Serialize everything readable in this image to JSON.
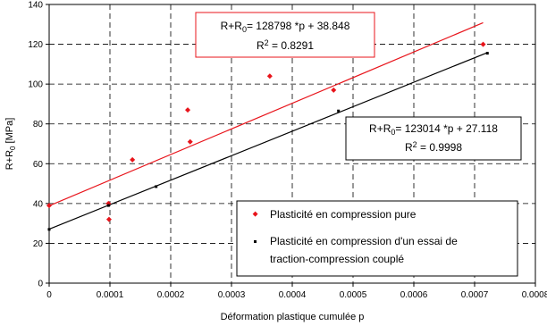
{
  "chart_data": {
    "type": "scatter",
    "xlabel": "Déformation plastique cumulée p",
    "ylabel": "R+R₀ [MPa]",
    "xlim": [
      0,
      0.0008
    ],
    "ylim": [
      0,
      140
    ],
    "x_ticks": [
      0,
      0.0001,
      0.0002,
      0.0003,
      0.0004,
      0.0005,
      0.0006,
      0.0007,
      0.0008
    ],
    "x_tick_labels": [
      "0",
      "0.0001",
      "0.0002",
      "0.0003",
      "0.0004",
      "0.0005",
      "0.0006",
      "0.0007",
      "0.0008"
    ],
    "y_ticks": [
      0,
      20,
      40,
      60,
      80,
      100,
      120,
      140
    ],
    "y_tick_labels": [
      "0",
      "20",
      "40",
      "60",
      "80",
      "100",
      "120",
      "140"
    ],
    "grid": true,
    "legend_position": "bottom-right",
    "series": [
      {
        "name": "Plasticité en compression pure",
        "color": "#e8141b",
        "marker": "diamond",
        "points": [
          [
            0,
            39
          ],
          [
            9.75e-05,
            40
          ],
          [
            9.85e-05,
            32
          ],
          [
            0.000137,
            62
          ],
          [
            0.000228,
            87
          ],
          [
            0.000232,
            71
          ],
          [
            0.000363,
            104
          ],
          [
            0.000468,
            97
          ],
          [
            0.000714,
            120
          ]
        ],
        "trendline": {
          "slope": 128798,
          "intercept": 38.848,
          "x_range": [
            0,
            0.000714
          ],
          "equation": "R+R₀= 128798 *p + 38.848",
          "r2": "R² = 0.8291"
        }
      },
      {
        "name": "Plasticité en compression d'un essai de traction-compression couplé",
        "color": "#000000",
        "marker": "square",
        "points": [
          [
            0,
            27
          ],
          [
            9.75e-05,
            39
          ],
          [
            0.000176,
            48.5
          ],
          [
            0.000476,
            86.5
          ],
          [
            0.000721,
            115.5
          ]
        ],
        "trendline": {
          "slope": 123014,
          "intercept": 27.118,
          "x_range": [
            0,
            0.000721
          ],
          "equation": "R+R₀= 123014 *p + 27.118",
          "r2": "R² = 0.9998"
        }
      }
    ]
  },
  "legend": {
    "entries": [
      {
        "label": "Plasticité en compression pure",
        "lines": [
          "Plasticité en compression pure"
        ]
      },
      {
        "label": "Plasticité en compression d'un essai de traction-compression couplé",
        "lines": [
          "Plasticité en compression d'un essai de",
          "traction-compression couplé"
        ]
      }
    ]
  },
  "annotations": {
    "red_equation": {
      "eq_prefix": "R+R",
      "eq_sub": "0",
      "eq_rest": "= 128798 *p + 38.848",
      "r2_prefix": "R",
      "r2_sup": "2",
      "r2_rest": " = 0.8291"
    },
    "black_equation": {
      "eq_prefix": "R+R",
      "eq_sub": "0",
      "eq_rest": "= 123014 *p + 27.118",
      "r2_prefix": "R",
      "r2_sup": "2",
      "r2_rest": " = 0.9998"
    }
  },
  "axis_title_parts": {
    "y_prefix": "R+R",
    "y_sub": "0",
    "y_rest": " [MPa]"
  }
}
